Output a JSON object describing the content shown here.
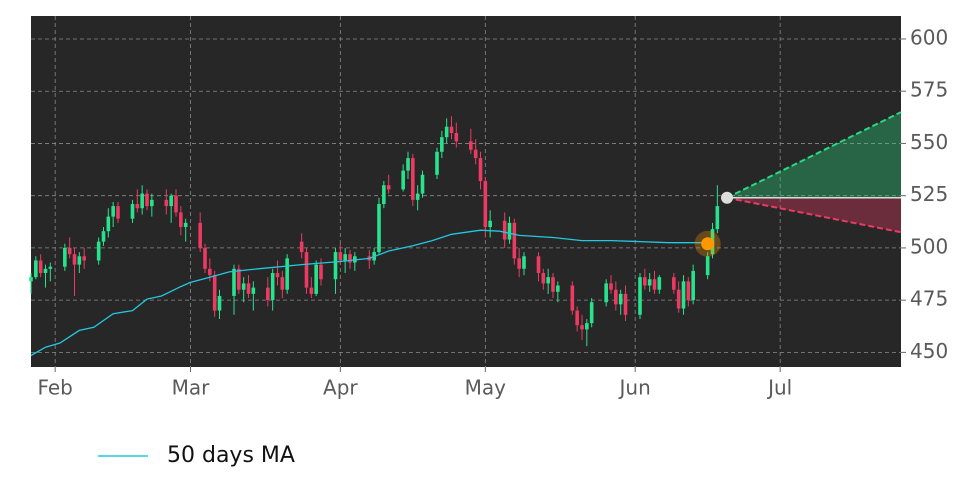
{
  "chart_data": {
    "type": "candlestick",
    "xlim": [
      26,
      206
    ],
    "ylim": [
      443,
      611
    ],
    "xticks": [
      {
        "value": 31,
        "label": "Feb"
      },
      {
        "value": 59,
        "label": "Mar"
      },
      {
        "value": 90,
        "label": "Apr"
      },
      {
        "value": 120,
        "label": "May"
      },
      {
        "value": 151,
        "label": "Jun"
      },
      {
        "value": 181,
        "label": "Jul"
      }
    ],
    "yticks": [
      450,
      475,
      500,
      525,
      550,
      575,
      600
    ],
    "grid": true,
    "up_color": "#27e38c",
    "down_color": "#ec3a62",
    "candles": {
      "x": [
        26,
        27,
        28,
        29,
        30,
        33,
        34,
        35,
        36,
        37,
        40,
        41,
        42,
        43,
        44,
        47,
        48,
        49,
        50,
        51,
        54,
        55,
        56,
        57,
        58,
        61,
        62,
        63,
        64,
        65,
        68,
        69,
        70,
        71,
        72,
        75,
        76,
        77,
        78,
        79,
        82,
        83,
        84,
        85,
        86,
        89,
        90,
        91,
        92,
        93,
        96,
        97,
        98,
        99,
        100,
        103,
        104,
        105,
        106,
        107,
        110,
        111,
        112,
        113,
        114,
        117,
        118,
        119,
        120,
        121,
        124,
        125,
        126,
        127,
        128,
        131,
        132,
        133,
        134,
        135,
        138,
        139,
        140,
        141,
        142,
        145,
        146,
        147,
        148,
        149,
        152,
        153,
        154,
        155,
        156,
        159,
        160,
        161,
        162,
        163,
        166,
        167,
        168
      ],
      "open": [
        484,
        486,
        494,
        488,
        490,
        491,
        500,
        497,
        492,
        496,
        494,
        503,
        508,
        515,
        520,
        514,
        521,
        519,
        526,
        520,
        523,
        520,
        525,
        517,
        510,
        512,
        500,
        490,
        487,
        470,
        477,
        490,
        480,
        483,
        478,
        481,
        475,
        488,
        486,
        480,
        503,
        498,
        481,
        478,
        492,
        485,
        498,
        494,
        497,
        493,
        496,
        494,
        498,
        521,
        530,
        528,
        537,
        543,
        523,
        526,
        535,
        546,
        553,
        558,
        555,
        551,
        547,
        543,
        532,
        510,
        513,
        504,
        512,
        495,
        490,
        496,
        488,
        483,
        486,
        479,
        482,
        470,
        463,
        461,
        464,
        474,
        483,
        480,
        473,
        478,
        468,
        486,
        482,
        485,
        480,
        486,
        480,
        471,
        484,
        475,
        487,
        497,
        509
      ],
      "high": [
        488,
        496,
        497,
        492,
        493,
        502,
        505,
        500,
        498,
        500,
        505,
        510,
        519,
        522,
        522,
        523,
        528,
        530,
        528,
        526,
        528,
        526,
        528,
        520,
        514,
        517,
        502,
        495,
        489,
        480,
        492,
        492,
        486,
        487,
        484,
        486,
        490,
        494,
        489,
        497,
        507,
        500,
        486,
        494,
        495,
        500,
        502,
        500,
        499,
        498,
        499,
        500,
        524,
        532,
        535,
        540,
        546,
        545,
        530,
        537,
        548,
        556,
        562,
        563,
        560,
        557,
        552,
        546,
        534,
        518,
        517,
        515,
        514,
        500,
        498,
        498,
        490,
        490,
        488,
        484,
        484,
        472,
        468,
        466,
        476,
        485,
        487,
        484,
        480,
        482,
        488,
        490,
        488,
        489,
        487,
        488,
        484,
        487,
        486,
        492,
        498,
        512,
        530
      ],
      "low": [
        478,
        485,
        486,
        481,
        484,
        489,
        495,
        477,
        488,
        490,
        492,
        501,
        505,
        510,
        512,
        512,
        517,
        516,
        518,
        515,
        516,
        512,
        515,
        506,
        503,
        498,
        488,
        484,
        467,
        466,
        468,
        478,
        474,
        476,
        470,
        472,
        470,
        482,
        476,
        478,
        495,
        478,
        476,
        477,
        482,
        478,
        492,
        488,
        490,
        489,
        490,
        492,
        497,
        519,
        526,
        527,
        533,
        520,
        518,
        524,
        533,
        543,
        550,
        552,
        548,
        545,
        540,
        528,
        505,
        505,
        500,
        502,
        492,
        486,
        487,
        484,
        480,
        478,
        476,
        474,
        468,
        460,
        456,
        453,
        462,
        472,
        478,
        470,
        468,
        465,
        466,
        480,
        479,
        478,
        478,
        478,
        469,
        468,
        472,
        473,
        485,
        495,
        507
      ],
      "close": [
        486,
        494,
        488,
        490,
        491,
        500,
        497,
        492,
        496,
        494,
        503,
        508,
        515,
        520,
        514,
        521,
        519,
        526,
        520,
        523,
        520,
        525,
        517,
        510,
        512,
        500,
        490,
        487,
        470,
        477,
        490,
        480,
        483,
        478,
        481,
        475,
        488,
        486,
        480,
        495,
        498,
        481,
        478,
        492,
        485,
        498,
        494,
        497,
        493,
        496,
        494,
        498,
        521,
        530,
        528,
        537,
        543,
        523,
        526,
        535,
        546,
        553,
        558,
        555,
        551,
        547,
        543,
        532,
        510,
        513,
        504,
        512,
        495,
        490,
        496,
        488,
        483,
        486,
        479,
        482,
        470,
        463,
        461,
        464,
        474,
        483,
        480,
        473,
        478,
        468,
        486,
        482,
        485,
        480,
        486,
        480,
        471,
        484,
        475,
        489,
        496,
        509,
        520
      ]
    },
    "ma": {
      "name": "50 days MA",
      "color": "#22c8e0",
      "x": [
        26,
        29,
        32,
        36,
        39,
        43,
        47,
        50,
        53,
        57,
        59,
        63,
        67,
        73,
        82,
        90,
        96,
        100,
        105,
        109,
        113,
        119,
        123,
        127,
        134,
        140,
        146,
        152,
        158,
        165
      ],
      "values": [
        448.5,
        452.5,
        454.5,
        460.5,
        462,
        468.5,
        470,
        475.5,
        477,
        481.5,
        483.5,
        486,
        488.5,
        490,
        492,
        493.5,
        495,
        498.5,
        501,
        503.5,
        506.5,
        508.5,
        508,
        506,
        505,
        503.5,
        503.5,
        503,
        502.5,
        502.5
      ]
    },
    "signal": {
      "x": 166,
      "value": 502,
      "color": "#ff9800"
    },
    "forecast": {
      "x": [
        170,
        206
      ],
      "upper": [
        524,
        565
      ],
      "lower": [
        524,
        507.5
      ],
      "start_color": "#dddddd",
      "upper_color": "#2bd882",
      "lower_color": "#ec3a62"
    }
  }
}
